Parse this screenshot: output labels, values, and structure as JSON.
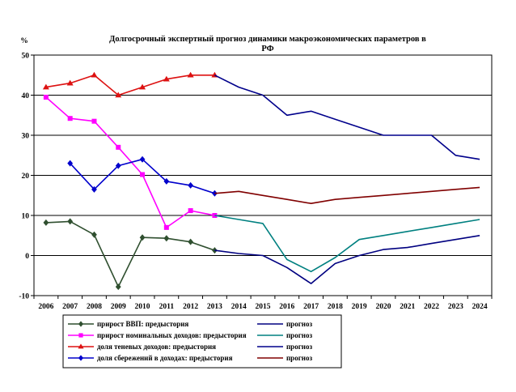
{
  "chart_data": {
    "type": "line",
    "title": "Долгосрочный экспертный прогноз динамики макроэкономических параметров в РФ",
    "title_lines": [
      "Долгосрочный экспертный прогноз динамики макроэкономических параметров в",
      "РФ"
    ],
    "ylabel": "%",
    "ylim": [
      -10,
      50
    ],
    "yticks": [
      -10,
      0,
      10,
      20,
      30,
      40,
      50
    ],
    "categories": [
      "2006",
      "2007",
      "2008",
      "2009",
      "2010",
      "2011",
      "2012",
      "2013",
      "2014",
      "2015",
      "2016",
      "2017",
      "2018",
      "2019",
      "2020",
      "2021",
      "2022",
      "2023",
      "2024"
    ],
    "grid": "horizontal",
    "legend_position": "bottom",
    "series": [
      {
        "name": "прирост ВВП: предыстория",
        "color": "#2f4f2f",
        "marker": "diamond",
        "values": [
          8.2,
          8.5,
          5.2,
          -7.8,
          4.5,
          4.3,
          3.4,
          1.3,
          null,
          null,
          null,
          null,
          null,
          null,
          null,
          null,
          null,
          null,
          null
        ]
      },
      {
        "name": "прогноз",
        "color": "#000080",
        "marker": "none",
        "values": [
          null,
          null,
          null,
          null,
          null,
          null,
          null,
          1.3,
          0.5,
          0,
          -3,
          -7,
          -2,
          0,
          1.5,
          2,
          3,
          4,
          5
        ]
      },
      {
        "name": "прирост номинальных доходов: предыстория",
        "color": "#ff00ff",
        "marker": "square",
        "values": [
          39.5,
          34.2,
          33.5,
          27,
          20.2,
          7,
          11.2,
          10,
          null,
          null,
          null,
          null,
          null,
          null,
          null,
          null,
          null,
          null,
          null
        ]
      },
      {
        "name": "прогноз",
        "color": "#008080",
        "marker": "none",
        "values": [
          null,
          null,
          null,
          null,
          null,
          null,
          null,
          10,
          9,
          8,
          -1,
          -4,
          -0.5,
          4,
          5,
          6,
          7,
          8,
          9
        ]
      },
      {
        "name": "доля теневых доходов: предыстория",
        "color": "#dd1111",
        "marker": "triangle",
        "values": [
          42,
          43,
          45,
          40,
          42,
          44,
          45,
          45,
          null,
          null,
          null,
          null,
          null,
          null,
          null,
          null,
          null,
          null,
          null
        ]
      },
      {
        "name": "прогноз",
        "color": "#00008b",
        "marker": "none",
        "values": [
          null,
          null,
          null,
          null,
          null,
          null,
          null,
          45,
          42,
          40,
          35,
          36,
          34,
          32,
          30,
          30,
          30,
          25,
          24
        ]
      },
      {
        "name": "доля сбережений в доходах: предыстория",
        "color": "#0000cc",
        "marker": "diamond",
        "values": [
          null,
          23,
          16.5,
          22.4,
          24,
          18.5,
          17.5,
          15.5,
          null,
          null,
          null,
          null,
          null,
          null,
          null,
          null,
          null,
          null,
          null
        ]
      },
      {
        "name": "прогноз",
        "color": "#800000",
        "marker": "none",
        "values": [
          null,
          null,
          null,
          null,
          null,
          null,
          null,
          15.5,
          16,
          15,
          14,
          13,
          14,
          14.5,
          15,
          15.5,
          16,
          16.5,
          17
        ]
      }
    ]
  }
}
